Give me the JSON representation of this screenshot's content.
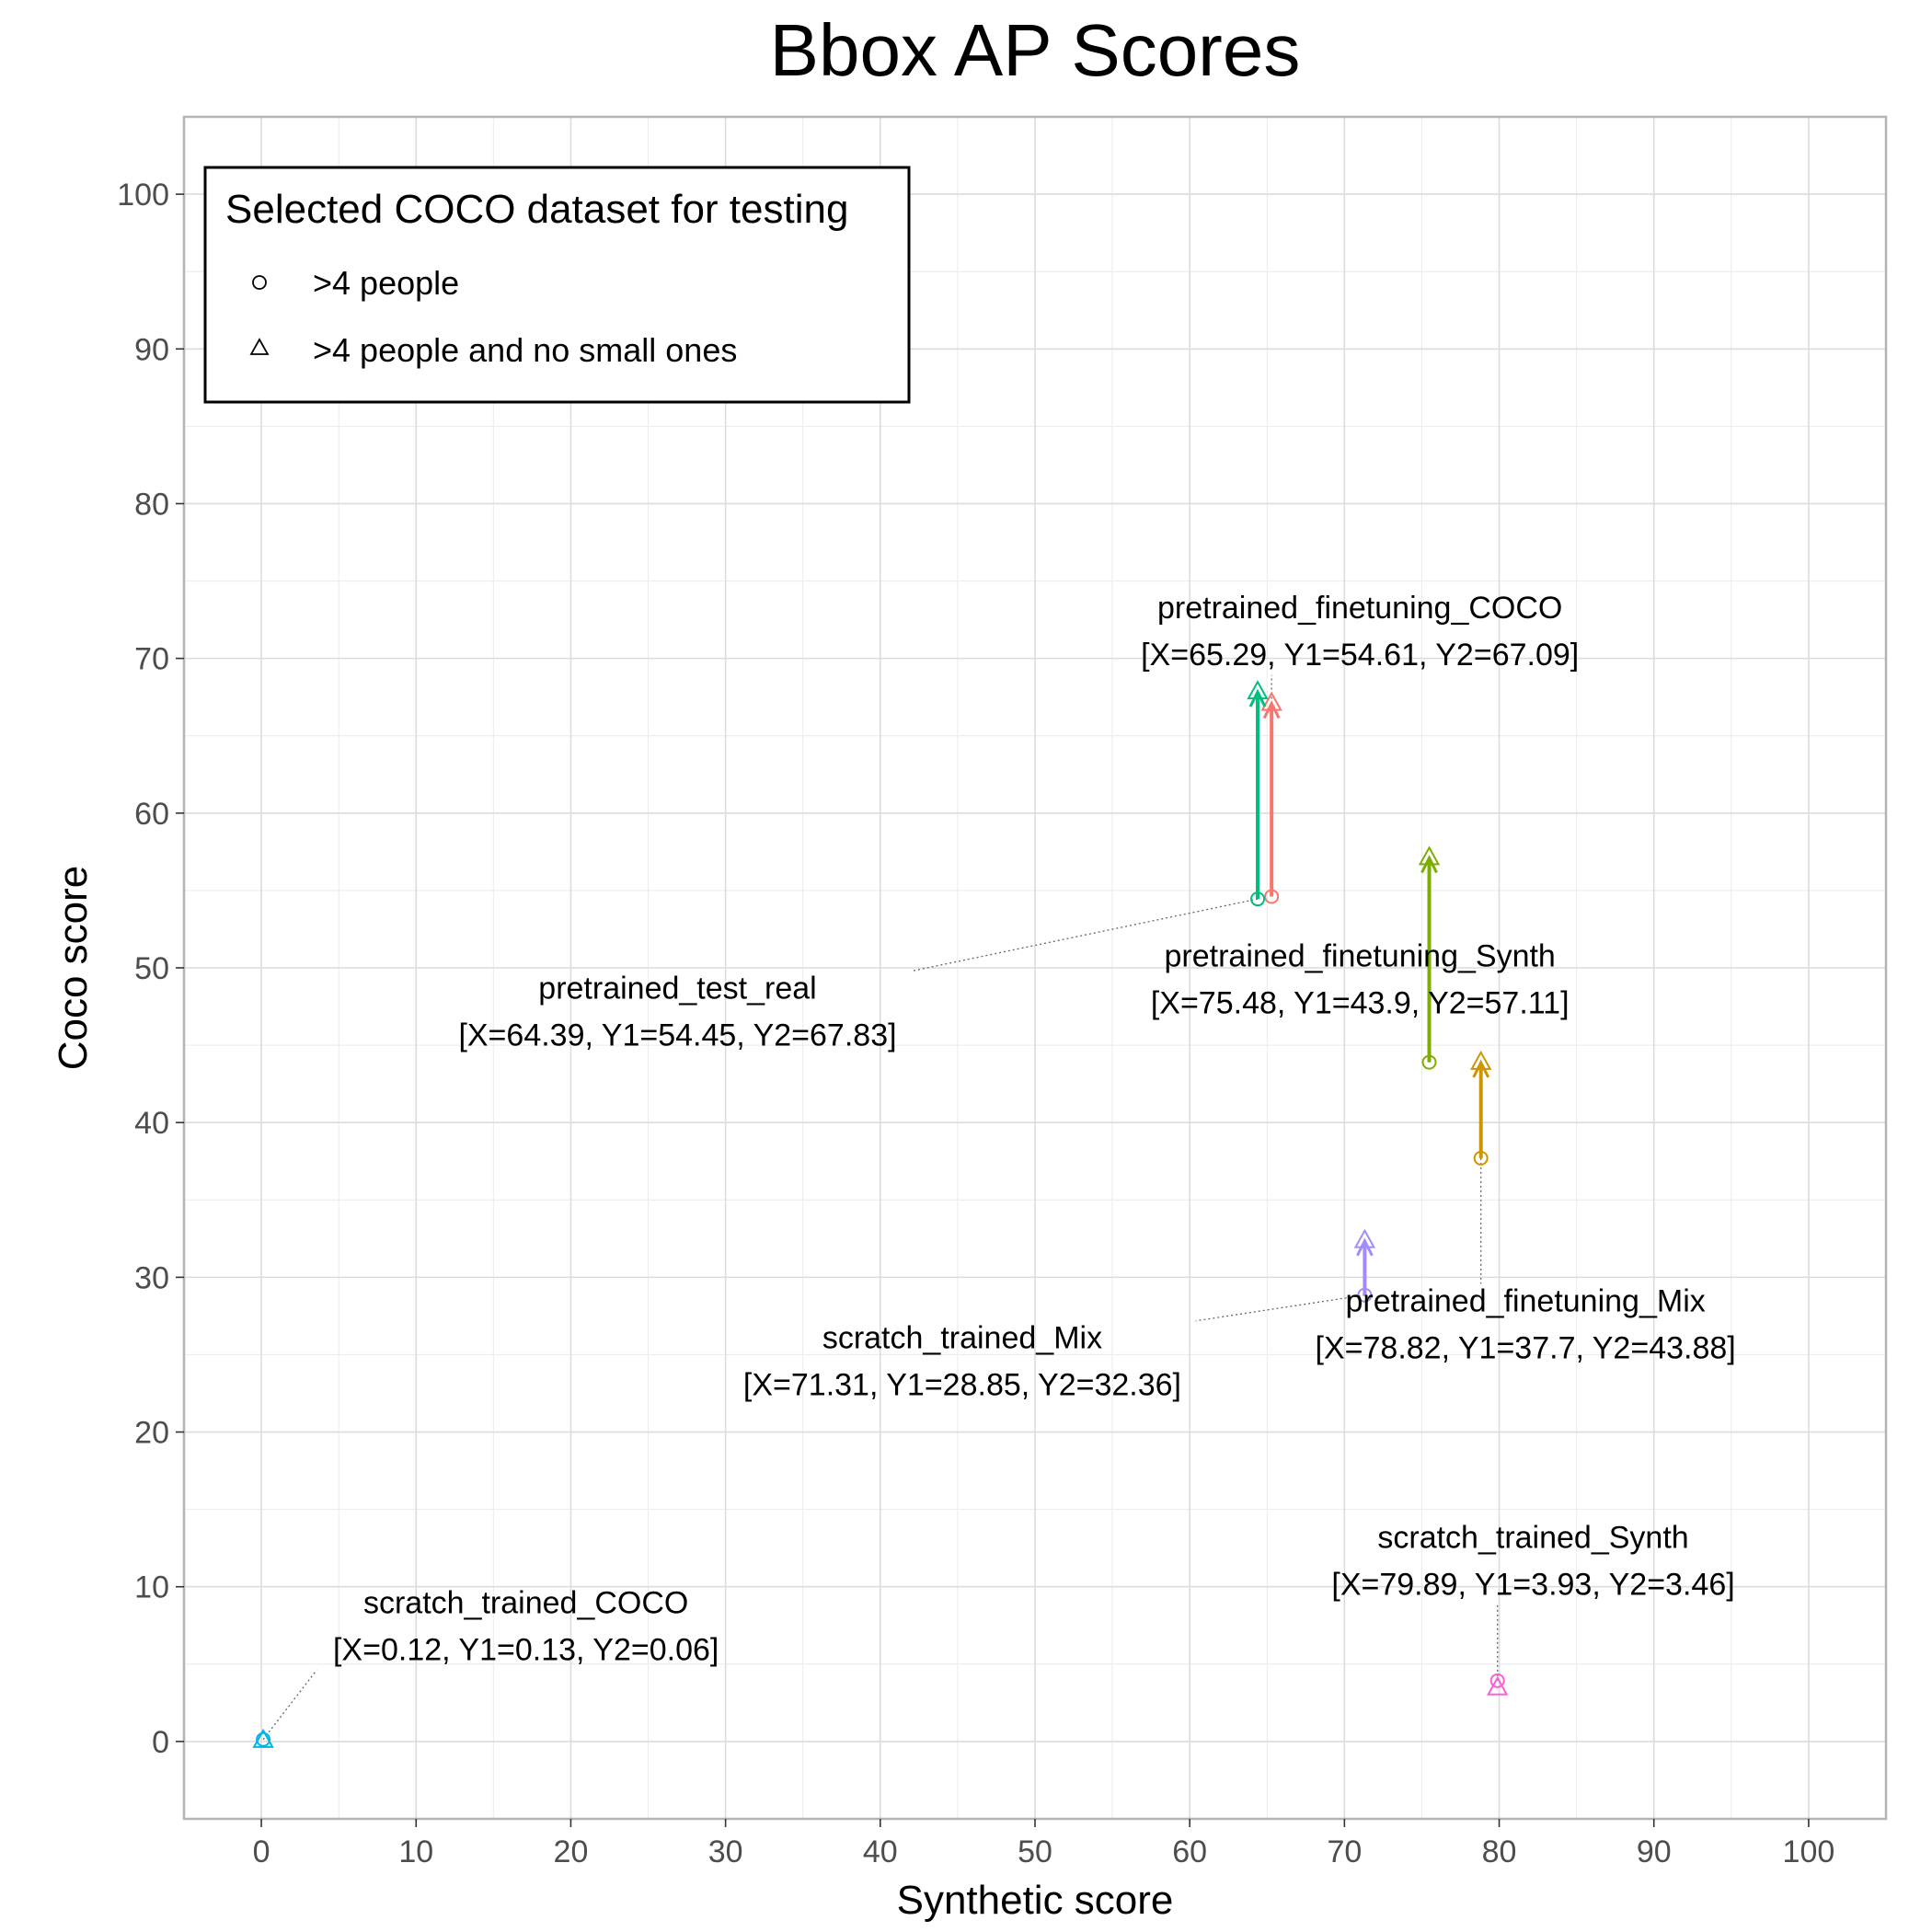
{
  "chart_data": {
    "type": "scatter",
    "title": "Bbox AP Scores",
    "xlabel": "Synthetic score",
    "ylabel": "Coco score",
    "xlim": [
      -5,
      105
    ],
    "ylim": [
      -5,
      105
    ],
    "x_ticks": [
      0,
      10,
      20,
      30,
      40,
      50,
      60,
      70,
      80,
      90,
      100
    ],
    "y_ticks": [
      0,
      10,
      20,
      30,
      40,
      50,
      60,
      70,
      80,
      90,
      100
    ],
    "x_tick_labels": [
      "0",
      "10",
      "20",
      "30",
      "40",
      "50",
      "60",
      "70",
      "80",
      "90",
      "100"
    ],
    "y_tick_labels": [
      "0",
      "10",
      "20",
      "30",
      "40",
      "50",
      "60",
      "70",
      "80",
      "90",
      "100"
    ],
    "grid": true,
    "legend": {
      "title": "Selected COCO dataset for testing",
      "placement": "top-left",
      "entries": [
        {
          "shape": "circle",
          "label": ">4 people"
        },
        {
          "shape": "triangle",
          "label": ">4 people and no small ones"
        }
      ]
    },
    "series": [
      {
        "name": "pretrained_finetuning_COCO",
        "x": 65.29,
        "y1": 54.61,
        "y2": 67.09,
        "color": "#F8766D",
        "label_line1": "pretrained_finetuning_COCO",
        "label_line2": "[X=65.29, Y1=54.61, Y2=67.09]",
        "label_x": 71.0,
        "label_y": 72.6
      },
      {
        "name": "pretrained_test_real",
        "x": 64.39,
        "y1": 54.45,
        "y2": 67.83,
        "color": "#00BF7D",
        "label_line1": "pretrained_test_real",
        "label_line2": "[X=64.39, Y1=54.45, Y2=67.83]",
        "label_x": 26.9,
        "label_y": 48.0
      },
      {
        "name": "pretrained_finetuning_Synth",
        "x": 75.48,
        "y1": 43.9,
        "y2": 57.11,
        "color": "#7CAE00",
        "label_line1": "pretrained_finetuning_Synth",
        "label_line2": "[X=75.48, Y1=43.9, Y2=57.11]",
        "label_x": 71.0,
        "label_y": 50.1
      },
      {
        "name": "pretrained_finetuning_Mix",
        "x": 78.82,
        "y1": 37.7,
        "y2": 43.88,
        "color": "#CD9600",
        "label_line1": "pretrained_finetuning_Mix",
        "label_line2": "[X=78.82, Y1=37.7, Y2=43.88]",
        "label_x": 81.7,
        "label_y": 27.8
      },
      {
        "name": "scratch_trained_Mix",
        "x": 71.31,
        "y1": 28.85,
        "y2": 32.36,
        "color": "#A58AFF",
        "label_line1": "scratch_trained_Mix",
        "label_line2": "[X=71.31, Y1=28.85, Y2=32.36]",
        "label_x": 45.3,
        "label_y": 25.4
      },
      {
        "name": "scratch_trained_Synth",
        "x": 79.89,
        "y1": 3.93,
        "y2": 3.46,
        "color": "#FB61D7",
        "label_line1": "scratch_trained_Synth",
        "label_line2": "[X=79.89, Y1=3.93, Y2=3.46]",
        "label_x": 82.2,
        "label_y": 12.5
      },
      {
        "name": "scratch_trained_COCO",
        "x": 0.12,
        "y1": 0.13,
        "y2": 0.06,
        "color": "#00B4E4",
        "label_line1": "scratch_trained_COCO",
        "label_line2": "[X=0.12, Y1=0.13, Y2=0.06]",
        "label_x": 17.1,
        "label_y": 8.3
      }
    ]
  }
}
